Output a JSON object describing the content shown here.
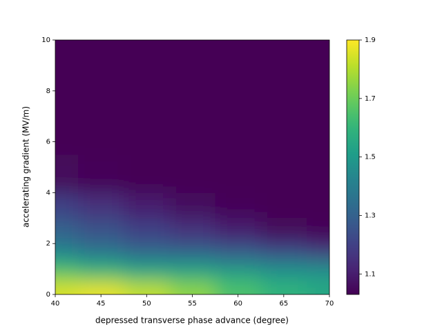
{
  "chart_data": {
    "type": "heatmap",
    "xlabel": "depressed transverse phase advance (degree)",
    "ylabel": "accelerating gradient (MV/m)",
    "x": [
      40,
      45,
      50,
      55,
      60,
      65,
      70
    ],
    "y": [
      0.25,
      0.75,
      1.25,
      1.75,
      2.5,
      3.5,
      4.5,
      6.5,
      9
    ],
    "z": [
      [
        1.85,
        1.87,
        1.82,
        1.75,
        1.65,
        1.6,
        1.55
      ],
      [
        1.7,
        1.65,
        1.6,
        1.58,
        1.55,
        1.5,
        1.5
      ],
      [
        1.55,
        1.5,
        1.45,
        1.45,
        1.42,
        1.4,
        1.38
      ],
      [
        1.4,
        1.35,
        1.3,
        1.28,
        1.25,
        1.2,
        1.15
      ],
      [
        1.3,
        1.25,
        1.2,
        1.15,
        1.1,
        1.05,
        1.04
      ],
      [
        1.2,
        1.15,
        1.1,
        1.06,
        1.04,
        1.03,
        1.03
      ],
      [
        1.05,
        1.04,
        1.03,
        1.03,
        1.03,
        1.03,
        1.03
      ],
      [
        1.03,
        1.03,
        1.03,
        1.03,
        1.03,
        1.03,
        1.03
      ],
      [
        1.03,
        1.03,
        1.03,
        1.03,
        1.03,
        1.03,
        1.03
      ]
    ],
    "colormap": "viridis",
    "xlim": [
      40,
      70
    ],
    "xticks": [
      40,
      45,
      50,
      55,
      60,
      65,
      70
    ],
    "ylim": [
      0,
      10
    ],
    "yticks": [
      0,
      2,
      4,
      6,
      8,
      10
    ],
    "zlim": [
      1.03,
      1.9
    ],
    "zticks": [
      1.1,
      1.3,
      1.5,
      1.7,
      1.9
    ]
  }
}
